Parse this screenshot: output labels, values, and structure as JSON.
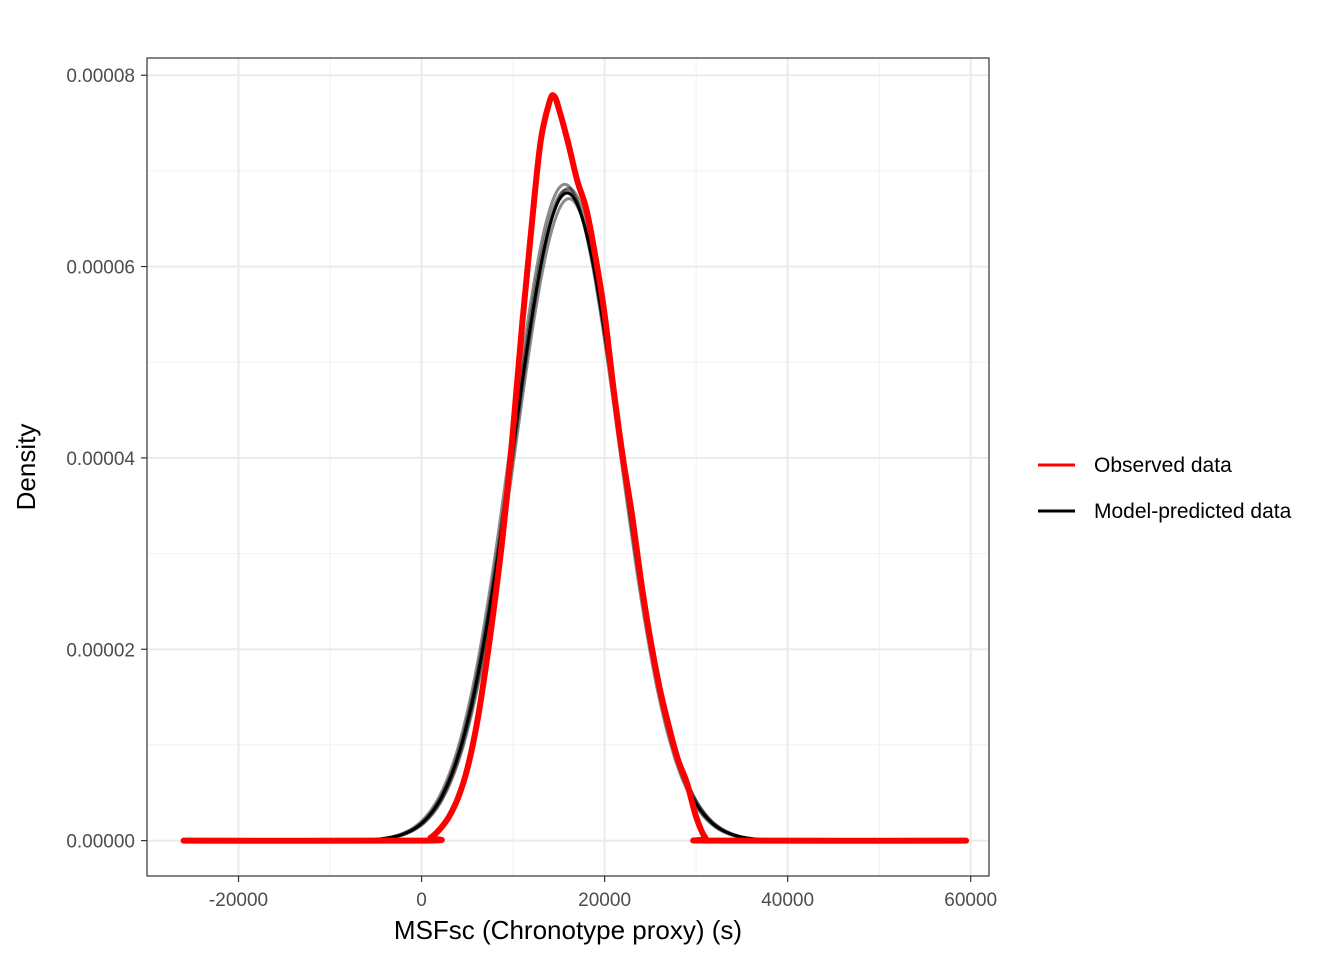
{
  "chart_data": {
    "type": "line",
    "title": "",
    "xlabel": "MSFsc (Chronotype proxy) (s)",
    "ylabel": "Density",
    "xlim": [
      -30000,
      62000
    ],
    "ylim": [
      -3.7e-06,
      8.18e-05
    ],
    "x_ticks": [
      -20000,
      0,
      20000,
      40000,
      60000
    ],
    "x_tick_labels": [
      "-20000",
      "0",
      "20000",
      "40000",
      "60000"
    ],
    "y_ticks": [
      0,
      2e-05,
      4e-05,
      6e-05,
      8e-05
    ],
    "y_tick_labels": [
      "0.00000",
      "0.00002",
      "0.00004",
      "0.00006",
      "0.00008"
    ],
    "grid": true,
    "legend_position": "right",
    "series": [
      {
        "name": "Observed data",
        "color": "#ff0000",
        "points": [
          [
            -26000,
            0
          ],
          [
            0,
            0
          ],
          [
            1000,
            3e-07
          ],
          [
            2000,
            1.2e-06
          ],
          [
            3000,
            2.5e-06
          ],
          [
            4000,
            4.5e-06
          ],
          [
            5000,
            7.5e-06
          ],
          [
            6000,
            1.2e-05
          ],
          [
            7000,
            1.8e-05
          ],
          [
            8000,
            2.5e-05
          ],
          [
            9000,
            3.3e-05
          ],
          [
            10000,
            4.3e-05
          ],
          [
            11000,
            5.4e-05
          ],
          [
            12000,
            6.4e-05
          ],
          [
            13000,
            7.3e-05
          ],
          [
            14000,
            7.73e-05
          ],
          [
            14500,
            7.78e-05
          ],
          [
            15000,
            7.65e-05
          ],
          [
            16000,
            7.3e-05
          ],
          [
            17000,
            6.9e-05
          ],
          [
            18000,
            6.6e-05
          ],
          [
            19000,
            6.1e-05
          ],
          [
            20000,
            5.5e-05
          ],
          [
            21000,
            4.7e-05
          ],
          [
            22000,
            4e-05
          ],
          [
            23000,
            3.4e-05
          ],
          [
            24000,
            2.7e-05
          ],
          [
            25000,
            2.1e-05
          ],
          [
            26000,
            1.6e-05
          ],
          [
            27000,
            1.2e-05
          ],
          [
            28000,
            8.5e-06
          ],
          [
            29000,
            6e-06
          ],
          [
            30000,
            2.5e-06
          ],
          [
            31000,
            3e-07
          ],
          [
            32000,
            0
          ],
          [
            59500,
            0
          ]
        ]
      },
      {
        "name": "Model-predicted data",
        "color": "#000000",
        "mean": 15900,
        "sd": 5900,
        "peak_density": 6.77e-05,
        "x_range": [
          -26000,
          59500
        ]
      }
    ]
  }
}
